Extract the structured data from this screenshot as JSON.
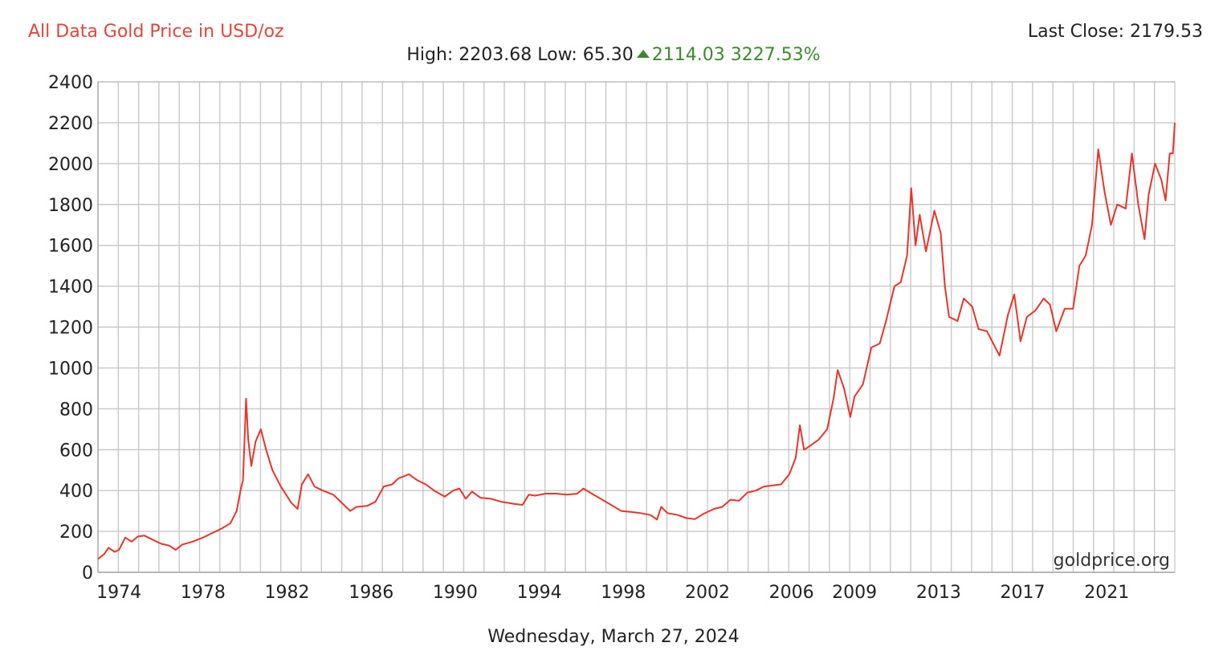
{
  "header": {
    "title": "All Data Gold Price in USD/oz",
    "last_close": "Last Close: 2179.53",
    "high": "High: 2203.68",
    "low": "Low: 65.30",
    "change_abs": "2114.03",
    "change_pct": "3227.53%"
  },
  "footer": {
    "date": "Wednesday, March 27, 2024"
  },
  "colors": {
    "line": "#e8352b",
    "title": "#e0463c",
    "up": "#3c8a2e",
    "grid": "#c8c8c8"
  },
  "chart_data": {
    "type": "line",
    "title": "All Data Gold Price in USD/oz",
    "xlabel": "",
    "ylabel": "",
    "grid": true,
    "legend": "none",
    "watermark": "goldprice.org",
    "xlim": [
      1973.0,
      2024.24
    ],
    "ylim": [
      0,
      2400
    ],
    "yticks": [
      0,
      200,
      400,
      600,
      800,
      1000,
      1200,
      1400,
      1600,
      1800,
      2000,
      2200,
      2400
    ],
    "xtick_labels": [
      "1974",
      "1978",
      "1982",
      "1986",
      "1990",
      "1994",
      "1998",
      "2002",
      "2006",
      "2009",
      "2013",
      "2017",
      "2021"
    ],
    "series": [
      {
        "points": [
          [
            1973.0,
            65
          ],
          [
            1973.3,
            90
          ],
          [
            1973.5,
            120
          ],
          [
            1973.8,
            100
          ],
          [
            1974.0,
            110
          ],
          [
            1974.3,
            170
          ],
          [
            1974.6,
            150
          ],
          [
            1974.9,
            175
          ],
          [
            1975.2,
            180
          ],
          [
            1975.6,
            160
          ],
          [
            1976.0,
            140
          ],
          [
            1976.4,
            130
          ],
          [
            1976.7,
            110
          ],
          [
            1977.0,
            135
          ],
          [
            1977.5,
            150
          ],
          [
            1978.0,
            170
          ],
          [
            1978.5,
            195
          ],
          [
            1978.9,
            215
          ],
          [
            1979.3,
            240
          ],
          [
            1979.6,
            300
          ],
          [
            1979.8,
            410
          ],
          [
            1979.9,
            450
          ],
          [
            1980.05,
            850
          ],
          [
            1980.15,
            650
          ],
          [
            1980.3,
            520
          ],
          [
            1980.5,
            640
          ],
          [
            1980.75,
            700
          ],
          [
            1981.0,
            600
          ],
          [
            1981.3,
            500
          ],
          [
            1981.7,
            420
          ],
          [
            1982.2,
            340
          ],
          [
            1982.5,
            310
          ],
          [
            1982.7,
            430
          ],
          [
            1983.0,
            480
          ],
          [
            1983.3,
            420
          ],
          [
            1983.7,
            400
          ],
          [
            1984.2,
            380
          ],
          [
            1984.6,
            340
          ],
          [
            1985.0,
            300
          ],
          [
            1985.3,
            320
          ],
          [
            1985.8,
            325
          ],
          [
            1986.2,
            345
          ],
          [
            1986.6,
            420
          ],
          [
            1987.0,
            430
          ],
          [
            1987.3,
            460
          ],
          [
            1987.8,
            480
          ],
          [
            1988.2,
            450
          ],
          [
            1988.6,
            430
          ],
          [
            1989.0,
            400
          ],
          [
            1989.5,
            370
          ],
          [
            1989.9,
            400
          ],
          [
            1990.2,
            410
          ],
          [
            1990.5,
            360
          ],
          [
            1990.8,
            395
          ],
          [
            1991.2,
            365
          ],
          [
            1991.7,
            360
          ],
          [
            1992.2,
            345
          ],
          [
            1992.8,
            335
          ],
          [
            1993.2,
            330
          ],
          [
            1993.5,
            380
          ],
          [
            1993.8,
            375
          ],
          [
            1994.3,
            385
          ],
          [
            1994.8,
            385
          ],
          [
            1995.3,
            380
          ],
          [
            1995.8,
            385
          ],
          [
            1996.1,
            410
          ],
          [
            1996.5,
            385
          ],
          [
            1997.0,
            355
          ],
          [
            1997.5,
            325
          ],
          [
            1997.9,
            300
          ],
          [
            1998.4,
            295
          ],
          [
            1998.8,
            290
          ],
          [
            1999.3,
            280
          ],
          [
            1999.6,
            258
          ],
          [
            1999.8,
            320
          ],
          [
            2000.1,
            290
          ],
          [
            2000.6,
            280
          ],
          [
            2001.0,
            265
          ],
          [
            2001.4,
            260
          ],
          [
            2001.8,
            285
          ],
          [
            2002.3,
            310
          ],
          [
            2002.7,
            320
          ],
          [
            2003.1,
            355
          ],
          [
            2003.5,
            350
          ],
          [
            2003.9,
            390
          ],
          [
            2004.3,
            400
          ],
          [
            2004.7,
            420
          ],
          [
            2005.1,
            425
          ],
          [
            2005.5,
            430
          ],
          [
            2005.9,
            480
          ],
          [
            2006.2,
            560
          ],
          [
            2006.4,
            720
          ],
          [
            2006.6,
            600
          ],
          [
            2006.9,
            620
          ],
          [
            2007.3,
            650
          ],
          [
            2007.7,
            700
          ],
          [
            2008.0,
            850
          ],
          [
            2008.2,
            990
          ],
          [
            2008.5,
            900
          ],
          [
            2008.8,
            760
          ],
          [
            2009.0,
            860
          ],
          [
            2009.4,
            920
          ],
          [
            2009.8,
            1100
          ],
          [
            2010.2,
            1120
          ],
          [
            2010.5,
            1230
          ],
          [
            2010.9,
            1400
          ],
          [
            2011.2,
            1420
          ],
          [
            2011.5,
            1550
          ],
          [
            2011.7,
            1880
          ],
          [
            2011.9,
            1600
          ],
          [
            2012.1,
            1750
          ],
          [
            2012.4,
            1570
          ],
          [
            2012.8,
            1770
          ],
          [
            2013.1,
            1660
          ],
          [
            2013.3,
            1400
          ],
          [
            2013.5,
            1250
          ],
          [
            2013.9,
            1230
          ],
          [
            2014.2,
            1340
          ],
          [
            2014.6,
            1300
          ],
          [
            2014.9,
            1190
          ],
          [
            2015.3,
            1180
          ],
          [
            2015.6,
            1120
          ],
          [
            2015.9,
            1060
          ],
          [
            2016.3,
            1260
          ],
          [
            2016.6,
            1360
          ],
          [
            2016.9,
            1130
          ],
          [
            2017.2,
            1250
          ],
          [
            2017.6,
            1280
          ],
          [
            2018.0,
            1340
          ],
          [
            2018.3,
            1310
          ],
          [
            2018.6,
            1180
          ],
          [
            2019.0,
            1290
          ],
          [
            2019.4,
            1290
          ],
          [
            2019.7,
            1500
          ],
          [
            2020.0,
            1550
          ],
          [
            2020.3,
            1700
          ],
          [
            2020.6,
            2070
          ],
          [
            2020.9,
            1860
          ],
          [
            2021.2,
            1700
          ],
          [
            2021.5,
            1800
          ],
          [
            2021.9,
            1780
          ],
          [
            2022.2,
            2050
          ],
          [
            2022.5,
            1800
          ],
          [
            2022.8,
            1630
          ],
          [
            2023.0,
            1850
          ],
          [
            2023.3,
            2000
          ],
          [
            2023.6,
            1920
          ],
          [
            2023.8,
            1820
          ],
          [
            2024.0,
            2050
          ],
          [
            2024.15,
            2050
          ],
          [
            2024.24,
            2200
          ]
        ]
      }
    ]
  }
}
